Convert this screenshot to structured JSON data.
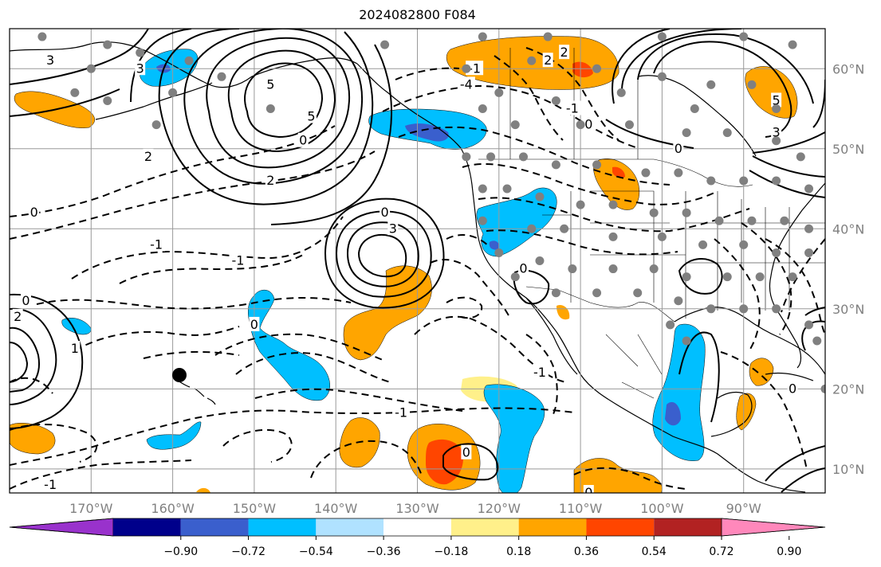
{
  "title": "2024082800 F084",
  "map": {
    "lon_ticks": [
      "170°W",
      "160°W",
      "150°W",
      "140°W",
      "130°W",
      "120°W",
      "110°W",
      "100°W",
      "90°W"
    ],
    "lat_ticks": [
      "60°N",
      "50°N",
      "40°N",
      "30°N",
      "20°N",
      "10°N"
    ],
    "lon_range": [
      -180,
      -80
    ],
    "lat_range": [
      7,
      65
    ],
    "projection": "equirectangular",
    "gridlines": true,
    "land_outline_color": "#000000",
    "contour_labels": [
      {
        "text": "3",
        "lon": -175,
        "lat": 61
      },
      {
        "text": "3",
        "lon": -164,
        "lat": 60
      },
      {
        "text": "5",
        "lon": -148,
        "lat": 58
      },
      {
        "text": "2",
        "lon": -163,
        "lat": 49
      },
      {
        "text": "5",
        "lon": -143,
        "lat": 54
      },
      {
        "text": "0",
        "lon": -144,
        "lat": 51
      },
      {
        "text": "2",
        "lon": -148,
        "lat": 46
      },
      {
        "text": "-1",
        "lon": -123,
        "lat": 60
      },
      {
        "text": "-4",
        "lon": -124,
        "lat": 58
      },
      {
        "text": "2",
        "lon": -114,
        "lat": 61
      },
      {
        "text": "2",
        "lon": -112,
        "lat": 62
      },
      {
        "text": "-1",
        "lon": -111,
        "lat": 55
      },
      {
        "text": "0",
        "lon": -109,
        "lat": 53
      },
      {
        "text": "5",
        "lon": -86,
        "lat": 56
      },
      {
        "text": "3",
        "lon": -86,
        "lat": 52
      },
      {
        "text": "0",
        "lon": -98,
        "lat": 50
      },
      {
        "text": "0",
        "lon": -177,
        "lat": 42
      },
      {
        "text": "0",
        "lon": -134,
        "lat": 42
      },
      {
        "text": "3",
        "lon": -133,
        "lat": 40
      },
      {
        "text": "-1",
        "lon": -162,
        "lat": 38
      },
      {
        "text": "-1",
        "lon": -152,
        "lat": 36
      },
      {
        "text": "0",
        "lon": -117,
        "lat": 35
      },
      {
        "text": "0",
        "lon": -178,
        "lat": 31
      },
      {
        "text": "2",
        "lon": -179,
        "lat": 29
      },
      {
        "text": "0",
        "lon": -150,
        "lat": 28
      },
      {
        "text": "1",
        "lon": -172,
        "lat": 25
      },
      {
        "text": "-1",
        "lon": -115,
        "lat": 22
      },
      {
        "text": "-1",
        "lon": -132,
        "lat": 17
      },
      {
        "text": "0",
        "lon": -124,
        "lat": 12
      },
      {
        "text": "-1",
        "lon": -175,
        "lat": 8
      },
      {
        "text": "0",
        "lon": -109,
        "lat": 7
      },
      {
        "text": "0",
        "lon": -84,
        "lat": 20
      }
    ]
  },
  "colorbar": {
    "tick_labels": [
      "−0.90",
      "−0.72",
      "−0.54",
      "−0.36",
      "−0.18",
      "0.18",
      "0.36",
      "0.54",
      "0.72",
      "0.90"
    ],
    "colors": [
      "#9932cc",
      "#00008b",
      "#3a5fcd",
      "#00bfff",
      "#b0e2ff",
      "#ffffff",
      "#fff08a",
      "#ffa500",
      "#ff4500",
      "#b22222",
      "#ff88bb"
    ],
    "extend": "both"
  },
  "colors": {
    "orange": "#ffa500",
    "red_orange": "#ff4500",
    "dark_red": "#b22222",
    "yellow": "#fff08a",
    "sky": "#00bfff",
    "blue": "#3a5fcd",
    "light_blue": "#b0e2ff",
    "grid": "#999999",
    "station": "#808080"
  }
}
